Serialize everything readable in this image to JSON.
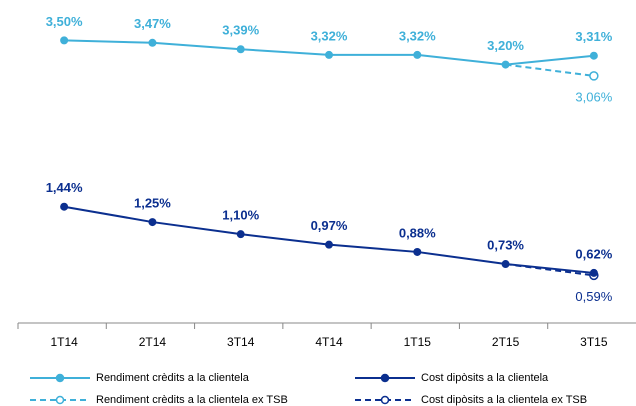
{
  "chart_data": {
    "type": "line",
    "categories": [
      "1T14",
      "2T14",
      "3T14",
      "4T14",
      "1T15",
      "2T15",
      "3T15"
    ],
    "ylim": [
      0,
      4
    ],
    "legend": "bottom",
    "series": [
      {
        "name": "Rendiment crèdits a la clientela ex TSB",
        "color": "#3fb0d9",
        "dashed": true,
        "marker": "open",
        "values": [
          null,
          null,
          null,
          null,
          null,
          3.2,
          3.06
        ],
        "value_labels": [
          null,
          null,
          null,
          null,
          null,
          null,
          "3,06%"
        ]
      },
      {
        "name": "Rendiment crèdits a la clientela",
        "color": "#3fb0d9",
        "dashed": false,
        "marker": "filled",
        "values": [
          3.5,
          3.47,
          3.39,
          3.32,
          3.32,
          3.2,
          3.31
        ],
        "value_labels": [
          "3,50%",
          "3,47%",
          "3,39%",
          "3,32%",
          "3,32%",
          "3,20%",
          "3,31%"
        ]
      },
      {
        "name": "Cost dipòsits a la clientela ex TSB",
        "color": "#0b2f8f",
        "dashed": true,
        "marker": "open",
        "values": [
          null,
          null,
          null,
          null,
          null,
          0.73,
          0.59
        ],
        "value_labels": [
          null,
          null,
          null,
          null,
          null,
          null,
          "0,59%"
        ]
      },
      {
        "name": "Cost dipòsits a la clientela",
        "color": "#0b2f8f",
        "dashed": false,
        "marker": "filled",
        "values": [
          1.44,
          1.25,
          1.1,
          0.97,
          0.88,
          0.73,
          0.62
        ],
        "value_labels": [
          "1,44%",
          "1,25%",
          "1,10%",
          "0,97%",
          "0,88%",
          "0,73%",
          "0,62%"
        ]
      }
    ]
  }
}
